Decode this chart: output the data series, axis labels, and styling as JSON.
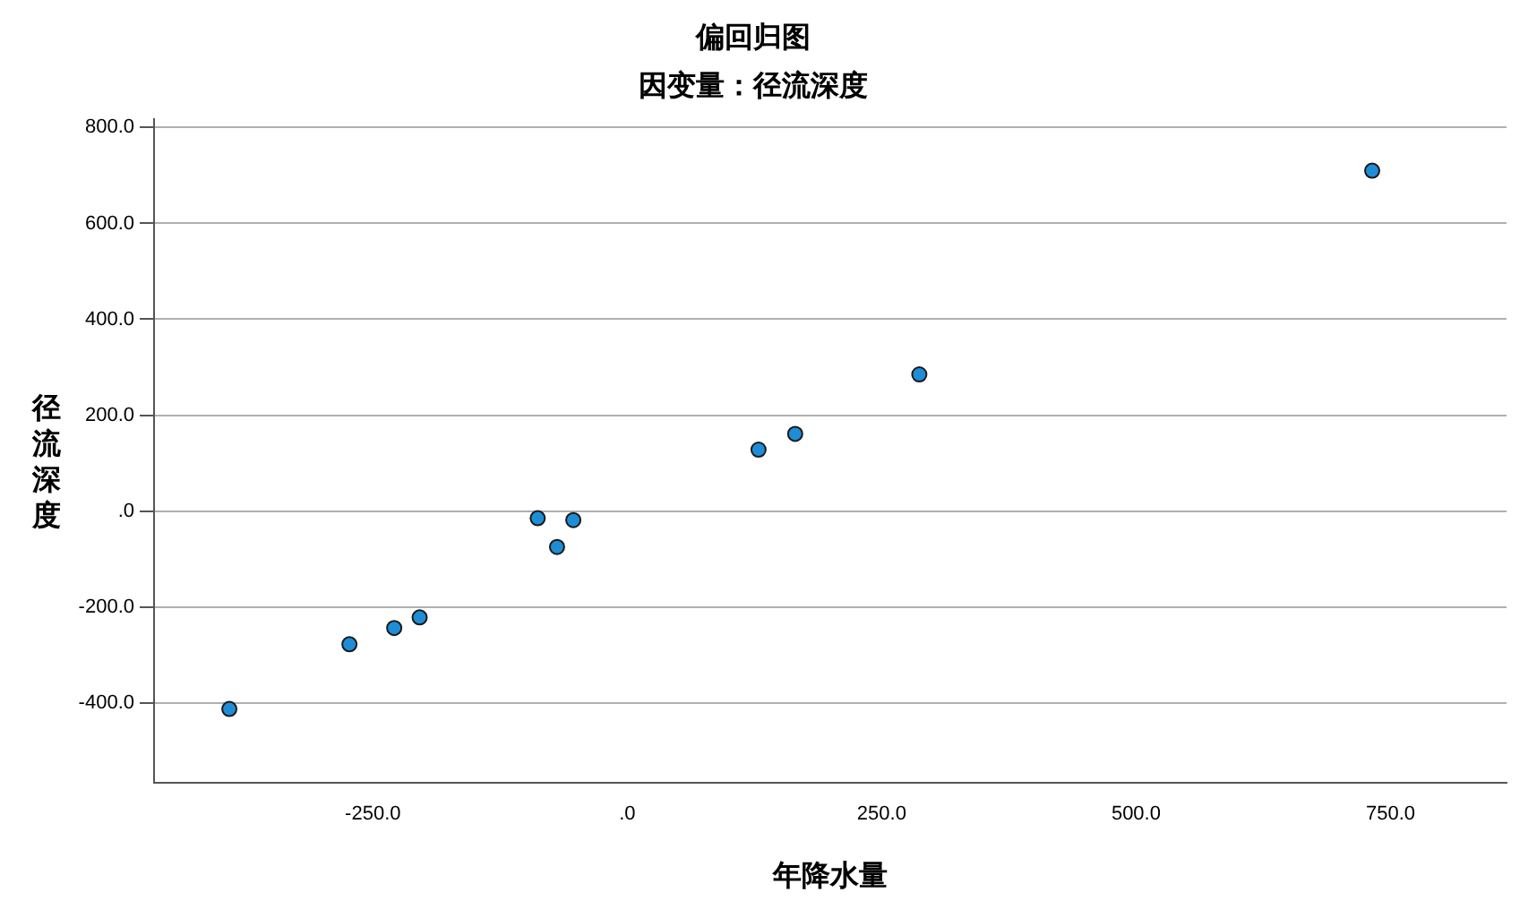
{
  "chart_data": {
    "type": "scatter",
    "title": "偏回归图",
    "subtitle": "因变量：径流深度",
    "xlabel": "年降水量",
    "ylabel": "径流深度",
    "x": [
      -391,
      -273,
      -229,
      -204,
      -88,
      -69,
      -53,
      129,
      165,
      287,
      732
    ],
    "series": [
      {
        "color": "#1f8dd6",
        "values": [
          -413,
          -278,
          -244,
          -222,
          -15,
          -75,
          -19,
          128,
          161,
          285,
          710
        ]
      }
    ],
    "xlim": [
      -465,
      864
    ],
    "xticks": [
      {
        "value": -250,
        "label": "-250.0"
      },
      {
        "value": 0,
        "label": ".0"
      },
      {
        "value": 250,
        "label": "250.0"
      },
      {
        "value": 500,
        "label": "500.0"
      },
      {
        "value": 750,
        "label": "750.0"
      }
    ],
    "ylim": [
      -567,
      818
    ],
    "yticks": [
      {
        "value": -400,
        "label": "-400.0"
      },
      {
        "value": -200,
        "label": "-200.0"
      },
      {
        "value": 0,
        "label": ".0"
      },
      {
        "value": 200,
        "label": "200.0"
      },
      {
        "value": 400,
        "label": "400.0"
      },
      {
        "value": 600,
        "label": "600.0"
      },
      {
        "value": 800,
        "label": "800.0"
      }
    ],
    "grid": "y",
    "marker": "circle",
    "legend": false
  }
}
